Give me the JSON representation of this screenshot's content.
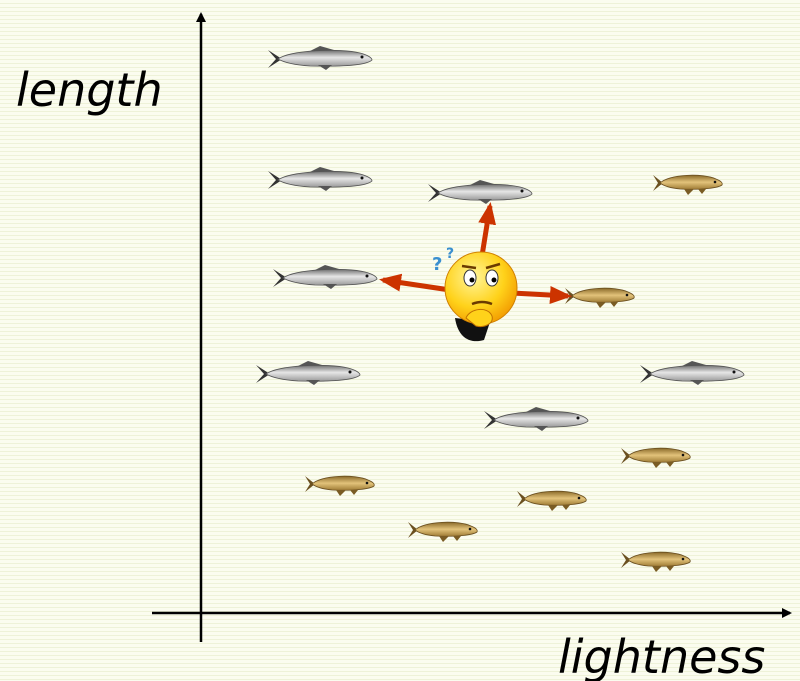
{
  "axes": {
    "y_label": "length",
    "x_label": "lightness"
  }
}
